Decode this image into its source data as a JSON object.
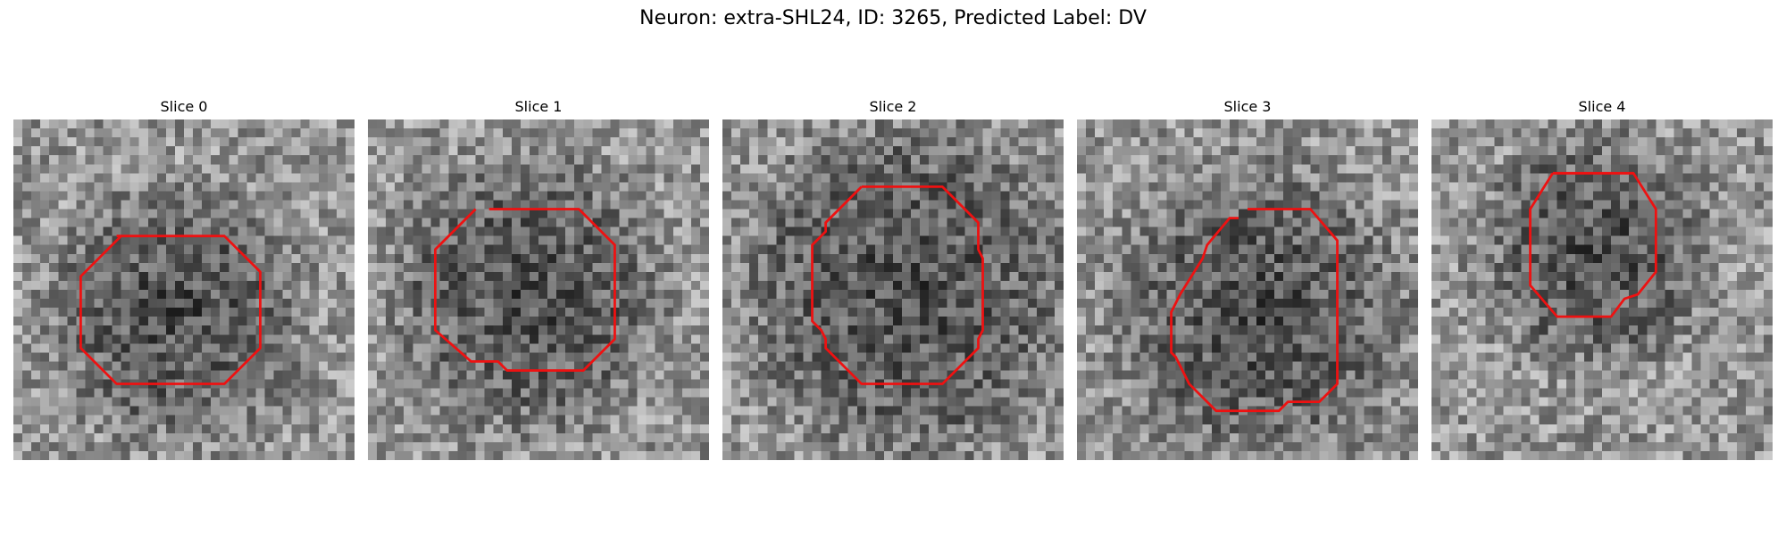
{
  "figure": {
    "title": "Neuron: extra-SHL24, ID: 3265, Predicted Label: DV"
  },
  "outline_color": "#ee1111",
  "panels": [
    {
      "title": "Slice 0",
      "outline": [
        [
          23,
          26
        ],
        [
          47,
          26
        ],
        [
          55,
          34
        ],
        [
          55,
          51
        ],
        [
          47,
          59
        ],
        [
          23,
          59
        ],
        [
          15,
          51
        ],
        [
          15,
          35
        ],
        [
          24,
          26
        ]
      ],
      "center": [
        35,
        42
      ],
      "radius": 12
    },
    {
      "title": "Slice 1",
      "outline": [
        [
          27,
          20
        ],
        [
          47,
          20
        ],
        [
          55,
          28
        ],
        [
          55,
          49
        ],
        [
          48,
          56
        ],
        [
          31,
          56
        ],
        [
          29,
          54
        ],
        [
          23,
          54
        ],
        [
          15,
          47
        ],
        [
          15,
          29
        ],
        [
          24,
          20
        ]
      ],
      "center": [
        35,
        38
      ],
      "radius": 13
    },
    {
      "title": "Slice 2",
      "outline": [
        [
          31,
          15
        ],
        [
          49,
          15
        ],
        [
          57,
          23
        ],
        [
          57,
          29
        ],
        [
          58,
          31
        ],
        [
          58,
          47
        ],
        [
          57,
          49
        ],
        [
          57,
          51
        ],
        [
          49,
          59
        ],
        [
          31,
          59
        ],
        [
          23,
          51
        ],
        [
          23,
          49
        ],
        [
          22,
          47
        ],
        [
          20,
          45
        ],
        [
          20,
          28
        ],
        [
          22,
          26
        ],
        [
          23,
          25
        ],
        [
          23,
          23
        ],
        [
          31,
          15
        ]
      ],
      "center": [
        40,
        37
      ],
      "radius": 16
    },
    {
      "title": "Slice 3",
      "outline": [
        [
          38,
          20
        ],
        [
          52,
          20
        ],
        [
          58,
          27
        ],
        [
          58,
          59
        ],
        [
          54,
          63
        ],
        [
          47,
          63
        ],
        [
          45,
          65
        ],
        [
          31,
          65
        ],
        [
          25,
          59
        ],
        [
          22,
          53
        ],
        [
          21,
          52
        ],
        [
          21,
          43
        ],
        [
          22,
          41
        ],
        [
          23,
          39
        ],
        [
          28,
          31
        ],
        [
          29,
          28
        ],
        [
          34,
          22
        ],
        [
          36,
          22
        ]
      ],
      "center": [
        40,
        42
      ],
      "radius": 14
    },
    {
      "title": "Slice 4",
      "outline": [
        [
          27,
          12
        ],
        [
          45,
          12
        ],
        [
          50,
          20
        ],
        [
          50,
          34
        ],
        [
          46,
          39
        ],
        [
          43,
          40
        ],
        [
          40,
          44
        ],
        [
          28,
          44
        ],
        [
          22,
          37
        ],
        [
          22,
          20
        ],
        [
          27,
          12
        ]
      ],
      "center": [
        36,
        28
      ],
      "radius": 11
    }
  ]
}
